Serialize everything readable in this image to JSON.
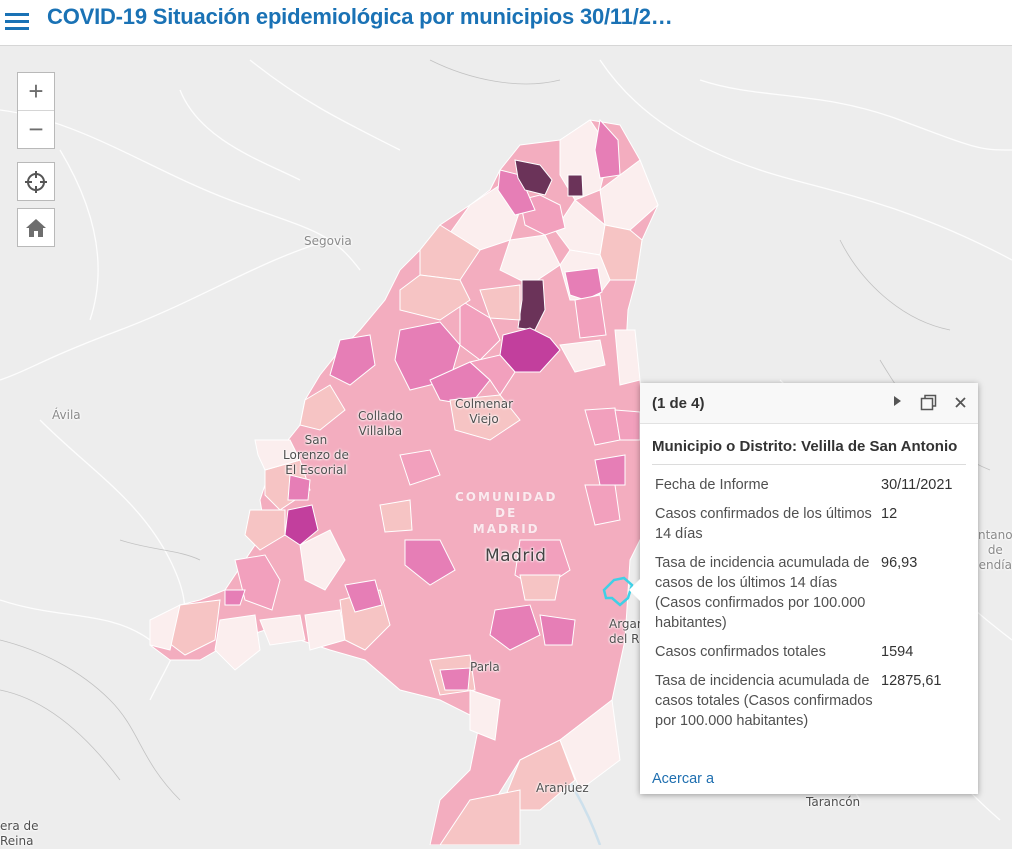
{
  "header": {
    "title": "COVID-19 Situación epidemiológica por municipios 30/11/2…"
  },
  "map_labels": {
    "segovia": "Segovia",
    "avila": "Ávila",
    "collado_villalba": "Collado\nVillalba",
    "colmenar_viejo": "Colmenar\nViejo",
    "san_lorenzo": "San\nLorenzo de\nEl Escorial",
    "comunidad": "COMUNIDAD\nDE\nMADRID",
    "madrid": "Madrid",
    "parla": "Parla",
    "arganda": "Argan\ndel R",
    "aranjuez": "Aranjuez",
    "tarancon": "Tarancón",
    "mancomunidad": "ntano\nde\nendía",
    "corner": "era de\nReina"
  },
  "popup": {
    "count": "(1 de 4)",
    "title": "Municipio o Distrito: Velilla de San Antonio",
    "rows": [
      {
        "label": "Fecha de Informe",
        "value": "30/11/2021"
      },
      {
        "label": "Casos confirmados de los últimos 14 días",
        "value": "12"
      },
      {
        "label": "Tasa de incidencia acumulada de casos de los últimos 14 días (Casos confirmados por 100.000 habitantes)",
        "value": "96,93"
      },
      {
        "label": "Casos confirmados totales",
        "value": "1594"
      },
      {
        "label": "Tasa de incidencia acumulada de casos totales (Casos confirmados por 100.000 habitantes)",
        "value": "12875,61"
      }
    ],
    "zoom_link": "Acercar a"
  },
  "controls": {
    "zoom_in": "+",
    "zoom_out": "−"
  },
  "colors": {
    "header_title": "#1a72b5",
    "very_low": "#fbeeee",
    "low": "#f6c4c4",
    "medium": "#f2a0bd",
    "high": "#e67eb6",
    "very_high": "#c23f9d",
    "extreme": "#6b3359",
    "selected_outline": "#3fd0e6"
  }
}
